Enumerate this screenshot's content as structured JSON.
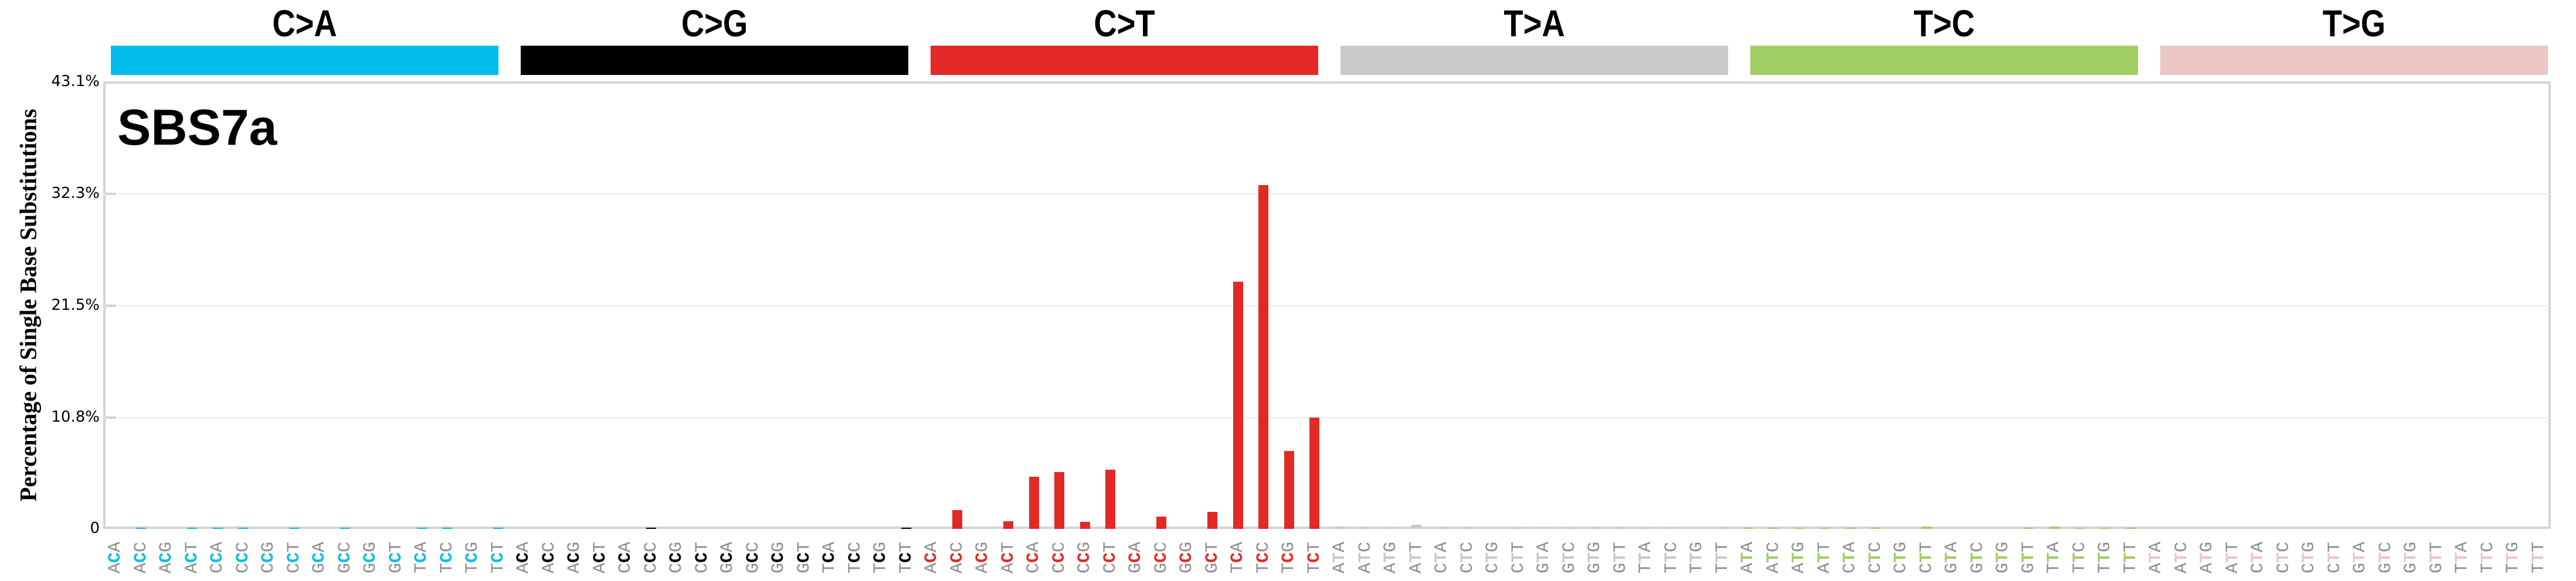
{
  "chart_data": {
    "type": "bar",
    "title": "SBS7a",
    "ylabel": "Percentage of Single Base Substitutions",
    "xlabel": "",
    "ylim": [
      0,
      43.1
    ],
    "yticks": [
      "0",
      "10.8%",
      "21.5%",
      "32.3%",
      "43.1%"
    ],
    "ytick_values": [
      0,
      10.8,
      21.5,
      32.3,
      43.1
    ],
    "grid": true,
    "legend": "none",
    "categories_groups": [
      {
        "name": "C>A",
        "color": "#03BCEE",
        "ref": "C"
      },
      {
        "name": "C>G",
        "color": "#010101",
        "ref": "C"
      },
      {
        "name": "C>T",
        "color": "#E32926",
        "ref": "C"
      },
      {
        "name": "T>A",
        "color": "#CAC9C9",
        "ref": "T"
      },
      {
        "name": "T>C",
        "color": "#A1CE63",
        "ref": "T"
      },
      {
        "name": "T>G",
        "color": "#EBC6C4",
        "ref": "T"
      }
    ],
    "contexts": [
      "A_A",
      "A_C",
      "A_G",
      "A_T",
      "C_A",
      "C_C",
      "C_G",
      "C_T",
      "G_A",
      "G_C",
      "G_G",
      "G_T",
      "T_A",
      "T_C",
      "T_G",
      "T_T"
    ],
    "series": [
      {
        "name": "C>A",
        "values": [
          0,
          0.05,
          0,
          0.05,
          0.05,
          0.05,
          0,
          0.05,
          0,
          0.05,
          0,
          0,
          0.05,
          0.05,
          0,
          0.05
        ]
      },
      {
        "name": "C>G",
        "values": [
          0,
          0,
          0,
          0,
          0,
          0.1,
          0,
          0,
          0,
          0,
          0,
          0,
          0,
          0,
          0,
          0.1
        ]
      },
      {
        "name": "C>T",
        "values": [
          0,
          1.8,
          0,
          0.75,
          5.0,
          5.5,
          0.67,
          5.7,
          0,
          1.18,
          0,
          1.63,
          23.8,
          33.1,
          7.5,
          10.7
        ]
      },
      {
        "name": "T>A",
        "values": [
          0.2,
          0.03,
          0.03,
          0.4,
          0.03,
          0.03,
          0,
          0.03,
          0.03,
          0.03,
          0.03,
          0.03,
          0.03,
          0.03,
          0,
          0.05
        ]
      },
      {
        "name": "T>C",
        "values": [
          0.05,
          0.05,
          0.05,
          0.05,
          0.05,
          0.05,
          0,
          0.25,
          0,
          0,
          0,
          0.12,
          0.25,
          0.05,
          0.05,
          0.1
        ]
      },
      {
        "name": "T>G",
        "values": [
          0.03,
          0.03,
          0.03,
          0.03,
          0,
          0.03,
          0,
          0,
          0,
          0,
          0.03,
          0.1,
          0.03,
          0,
          0,
          0
        ]
      }
    ]
  },
  "header": {
    "groups": [
      "C>A",
      "C>G",
      "C>T",
      "T>A",
      "T>C",
      "T>G"
    ]
  },
  "plot": {
    "title": "SBS7a",
    "ylabel": "Percentage of Single Base Substitutions",
    "yticks": {
      "t0": "0",
      "t1": "10.8%",
      "t2": "21.5%",
      "t3": "32.3%",
      "t4": "43.1%"
    }
  }
}
